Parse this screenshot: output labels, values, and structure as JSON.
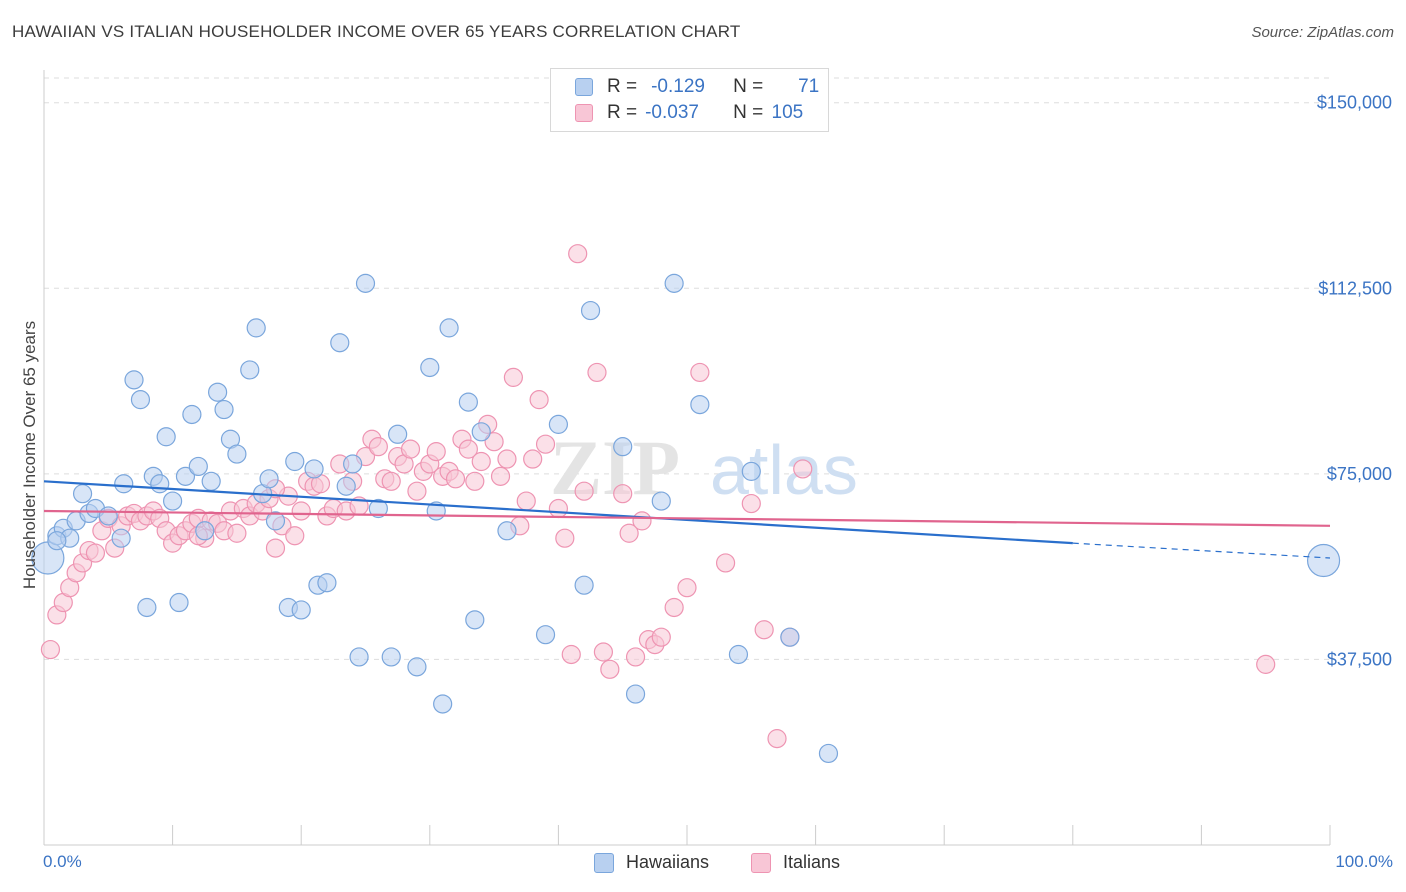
{
  "title": "HAWAIIAN VS ITALIAN HOUSEHOLDER INCOME OVER 65 YEARS CORRELATION CHART",
  "source": "Source: ZipAtlas.com",
  "watermark": "ZIPatlas",
  "legend_top": {
    "r_label": "R =",
    "n_label": "N =",
    "rows": [
      {
        "r": "-0.129",
        "n": "71"
      },
      {
        "r": "-0.037",
        "n": "105"
      }
    ]
  },
  "colors": {
    "hawaiians_fill": "#b8d0f0",
    "hawaiians_stroke": "#7aa6dc",
    "hawaiians_line": "#2a6fcc",
    "italians_fill": "#f8c6d6",
    "italians_stroke": "#ee94b2",
    "italians_line": "#e0648e",
    "value_blue": "#3b74c4"
  },
  "chart_data": {
    "type": "scatter",
    "title": "HAWAIIAN VS ITALIAN HOUSEHOLDER INCOME OVER 65 YEARS CORRELATION CHART",
    "xlabel": "",
    "ylabel": "Householder Income Over 65 years",
    "xlim": [
      0,
      100
    ],
    "ylim": [
      0,
      155000
    ],
    "x_tick_labels": [
      "0.0%",
      "100.0%"
    ],
    "y_ticks": [
      37500,
      75000,
      112500,
      150000
    ],
    "y_tick_labels": [
      "$37,500",
      "$75,000",
      "$112,500",
      "$150,000"
    ],
    "grid": true,
    "legend_position": "top-center",
    "series": [
      {
        "name": "Hawaiians",
        "r": -0.129,
        "n": 71,
        "trend": {
          "x": [
            0,
            80
          ],
          "y": [
            73500,
            61000
          ],
          "dashed_to": [
            100,
            58000
          ]
        },
        "points": [
          [
            0.3,
            58000
          ],
          [
            1,
            62500
          ],
          [
            1.5,
            64000
          ],
          [
            2,
            62000
          ],
          [
            2.5,
            65500
          ],
          [
            3,
            71000
          ],
          [
            3.5,
            67000
          ],
          [
            4,
            68000
          ],
          [
            5,
            66500
          ],
          [
            6,
            62000
          ],
          [
            6.2,
            73000
          ],
          [
            7,
            94000
          ],
          [
            7.5,
            90000
          ],
          [
            8,
            48000
          ],
          [
            8.5,
            74500
          ],
          [
            9,
            73000
          ],
          [
            9.5,
            82500
          ],
          [
            10,
            69500
          ],
          [
            10.5,
            49000
          ],
          [
            11,
            74500
          ],
          [
            11.5,
            87000
          ],
          [
            12,
            76500
          ],
          [
            12.5,
            63500
          ],
          [
            13,
            73500
          ],
          [
            13.5,
            91500
          ],
          [
            14,
            88000
          ],
          [
            14.5,
            82000
          ],
          [
            15,
            79000
          ],
          [
            16,
            96000
          ],
          [
            16.5,
            104500
          ],
          [
            17,
            71000
          ],
          [
            17.5,
            74000
          ],
          [
            18,
            65500
          ],
          [
            19,
            48000
          ],
          [
            19.5,
            77500
          ],
          [
            20,
            47500
          ],
          [
            21,
            76000
          ],
          [
            21.3,
            52500
          ],
          [
            22,
            53000
          ],
          [
            23,
            101500
          ],
          [
            23.5,
            72500
          ],
          [
            24,
            77000
          ],
          [
            24.5,
            38000
          ],
          [
            25,
            113500
          ],
          [
            26,
            68000
          ],
          [
            27,
            38000
          ],
          [
            27.5,
            83000
          ],
          [
            29,
            36000
          ],
          [
            30,
            96500
          ],
          [
            30.5,
            67500
          ],
          [
            31,
            28500
          ],
          [
            31.5,
            104500
          ],
          [
            33,
            89500
          ],
          [
            33.5,
            45500
          ],
          [
            34,
            83500
          ],
          [
            36,
            63500
          ],
          [
            39,
            42500
          ],
          [
            40,
            85000
          ],
          [
            42,
            52500
          ],
          [
            42.5,
            108000
          ],
          [
            45,
            80500
          ],
          [
            46,
            30500
          ],
          [
            48,
            69500
          ],
          [
            49,
            113500
          ],
          [
            51,
            89000
          ],
          [
            54,
            38500
          ],
          [
            55,
            75500
          ],
          [
            58,
            42000
          ],
          [
            61,
            18500
          ],
          [
            99.5,
            57500
          ],
          [
            1,
            61500
          ]
        ]
      },
      {
        "name": "Italians",
        "r": -0.037,
        "n": 105,
        "trend": {
          "x": [
            0,
            100
          ],
          "y": [
            67500,
            64500
          ]
        },
        "points": [
          [
            0.5,
            39500
          ],
          [
            1,
            46500
          ],
          [
            1.5,
            49000
          ],
          [
            2,
            52000
          ],
          [
            2.5,
            55000
          ],
          [
            3,
            57000
          ],
          [
            3.5,
            59500
          ],
          [
            4,
            59000
          ],
          [
            4.5,
            63500
          ],
          [
            5,
            66000
          ],
          [
            5.5,
            60000
          ],
          [
            6,
            64500
          ],
          [
            6.5,
            66500
          ],
          [
            7,
            67000
          ],
          [
            7.5,
            65500
          ],
          [
            8,
            66500
          ],
          [
            8.5,
            67500
          ],
          [
            9,
            66000
          ],
          [
            9.5,
            63500
          ],
          [
            10,
            61000
          ],
          [
            10.5,
            62500
          ],
          [
            11,
            63500
          ],
          [
            11.5,
            65000
          ],
          [
            12,
            66000
          ],
          [
            12.5,
            62000
          ],
          [
            13,
            65500
          ],
          [
            13.5,
            65000
          ],
          [
            14,
            63500
          ],
          [
            14.5,
            67500
          ],
          [
            15,
            63000
          ],
          [
            15.5,
            68000
          ],
          [
            16,
            66500
          ],
          [
            16.5,
            69000
          ],
          [
            17,
            67500
          ],
          [
            17.5,
            70000
          ],
          [
            18,
            60000
          ],
          [
            18.5,
            64500
          ],
          [
            19,
            70500
          ],
          [
            19.5,
            62500
          ],
          [
            20,
            67500
          ],
          [
            20.5,
            73500
          ],
          [
            21,
            72500
          ],
          [
            21.5,
            73000
          ],
          [
            22,
            66500
          ],
          [
            22.5,
            68000
          ],
          [
            23,
            77000
          ],
          [
            23.5,
            67500
          ],
          [
            24,
            73500
          ],
          [
            24.5,
            68500
          ],
          [
            25,
            78500
          ],
          [
            25.5,
            82000
          ],
          [
            26,
            80500
          ],
          [
            26.5,
            74000
          ],
          [
            27,
            73500
          ],
          [
            27.5,
            78500
          ],
          [
            28,
            77000
          ],
          [
            28.5,
            80000
          ],
          [
            29,
            71500
          ],
          [
            29.5,
            75500
          ],
          [
            30,
            77000
          ],
          [
            30.5,
            79500
          ],
          [
            31,
            74500
          ],
          [
            31.5,
            75500
          ],
          [
            32,
            74000
          ],
          [
            32.5,
            82000
          ],
          [
            33,
            80000
          ],
          [
            33.5,
            73500
          ],
          [
            34,
            77500
          ],
          [
            34.5,
            85000
          ],
          [
            35,
            81500
          ],
          [
            35.5,
            74500
          ],
          [
            36,
            78000
          ],
          [
            37,
            64500
          ],
          [
            37.5,
            69500
          ],
          [
            38,
            78000
          ],
          [
            38.5,
            90000
          ],
          [
            39,
            81000
          ],
          [
            40,
            68000
          ],
          [
            40.5,
            62000
          ],
          [
            41,
            38500
          ],
          [
            42,
            71500
          ],
          [
            43,
            95500
          ],
          [
            43.5,
            39000
          ],
          [
            44,
            35500
          ],
          [
            45,
            71000
          ],
          [
            45.5,
            63000
          ],
          [
            46,
            38000
          ],
          [
            47,
            41500
          ],
          [
            47.5,
            40500
          ],
          [
            48,
            42000
          ],
          [
            49,
            48000
          ],
          [
            50,
            52000
          ],
          [
            51,
            95500
          ],
          [
            53,
            57000
          ],
          [
            55,
            69000
          ],
          [
            56,
            43500
          ],
          [
            57,
            21500
          ],
          [
            58,
            42000
          ],
          [
            59,
            76000
          ],
          [
            41.5,
            119500
          ],
          [
            46.5,
            65500
          ],
          [
            36.5,
            94500
          ],
          [
            95,
            36500
          ],
          [
            18,
            72000
          ],
          [
            12,
            62500
          ]
        ]
      }
    ]
  }
}
